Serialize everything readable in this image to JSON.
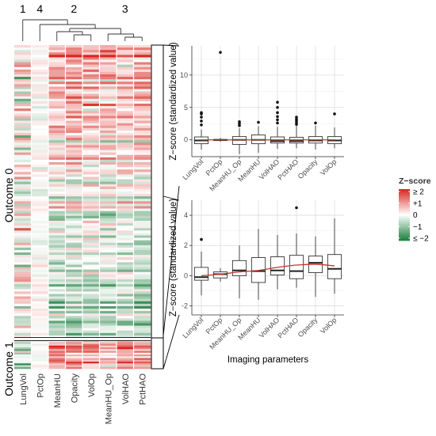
{
  "chart_data": [
    {
      "type": "heatmap",
      "row_groups": [
        {
          "label": "Outcome 0",
          "row_count": 120
        },
        {
          "label": "Outcome 1",
          "row_count": 16
        }
      ],
      "columns": [
        "LungVol",
        "PctOp",
        "MeanHU",
        "Opacity",
        "VolOp",
        "MeanHU_Op",
        "VolHAO",
        "PctHAO"
      ],
      "column_clusters": [
        "1",
        "4",
        "2",
        "3"
      ],
      "column_cluster_sizes": [
        1,
        1,
        3,
        3
      ],
      "color_scale": {
        "low": "#1a7d3c",
        "mid": "#ffffff",
        "high": "#d7261e",
        "domain": [
          -2,
          2
        ]
      },
      "legend": {
        "title": "Z−score",
        "labels": [
          "≥ 2",
          "+1",
          "0",
          "−1",
          "≤ −2"
        ]
      },
      "column_means_outcome0": [
        0.0,
        0.0,
        0.5,
        0.55,
        0.45,
        0.45,
        0.35,
        0.55
      ],
      "column_means_outcome1": [
        -0.3,
        0.0,
        0.9,
        0.95,
        0.85,
        0.35,
        0.95,
        0.85
      ]
    },
    {
      "type": "boxplot",
      "panel": "Outcome 0",
      "ylabel": "Z−score (standardized value)",
      "ylim": [
        -2.6,
        14.5
      ],
      "yticks": [
        0,
        5,
        10
      ],
      "categories": [
        "LungVol",
        "PctOp",
        "MeanHU_Op",
        "MeanHU",
        "VolHAO",
        "PctHAO",
        "Opacity",
        "VolOp"
      ],
      "boxes": [
        {
          "min": -1.5,
          "q1": -0.6,
          "median": -0.1,
          "q3": 0.45,
          "max": 1.6,
          "outliers": [
            2.3,
            2.9,
            3.5,
            4.0,
            4.2
          ]
        },
        {
          "min": -0.3,
          "q1": -0.1,
          "median": 0.0,
          "q3": 0.05,
          "max": 0.3,
          "outliers": [
            13.5
          ]
        },
        {
          "min": -2.2,
          "q1": -0.7,
          "median": 0.0,
          "q3": 0.5,
          "max": 1.8,
          "outliers": [
            2.2,
            2.5,
            2.8
          ]
        },
        {
          "min": -2.0,
          "q1": -0.6,
          "median": 0.0,
          "q3": 0.75,
          "max": 2.1,
          "outliers": [
            2.7
          ]
        },
        {
          "min": -1.4,
          "q1": -0.5,
          "median": -0.2,
          "q3": 0.45,
          "max": 2.0,
          "outliers": [
            2.6,
            3.1,
            3.6,
            4.2,
            5.0,
            5.8
          ]
        },
        {
          "min": -1.3,
          "q1": -0.5,
          "median": -0.2,
          "q3": 0.4,
          "max": 2.2,
          "outliers": [
            2.4,
            2.7,
            3.0,
            3.2,
            3.5
          ]
        },
        {
          "min": -1.5,
          "q1": -0.5,
          "median": -0.1,
          "q3": 0.5,
          "max": 2.2,
          "outliers": [
            2.6
          ]
        },
        {
          "min": -1.3,
          "q1": -0.6,
          "median": -0.1,
          "q3": 0.5,
          "max": 1.9,
          "outliers": [
            4.0
          ]
        }
      ],
      "trend_values": [
        0.0,
        0.0,
        0.0,
        0.0,
        0.0,
        0.0,
        0.0,
        0.0
      ]
    },
    {
      "type": "boxplot",
      "panel": "Outcome 1",
      "ylabel": "Z−score (standardized value)",
      "xlabel": "Imaging parameters",
      "ylim": [
        -2.6,
        5.0
      ],
      "yticks": [
        -2,
        0,
        2,
        4
      ],
      "categories": [
        "LungVol",
        "PctOp",
        "MeanHU_Op",
        "MeanHU",
        "VolHAO",
        "PctHAO",
        "Opacity",
        "VolOp"
      ],
      "boxes": [
        {
          "min": -1.3,
          "q1": -0.3,
          "median": -0.1,
          "q3": 0.55,
          "max": 1.6,
          "outliers": [
            2.4
          ]
        },
        {
          "min": -0.4,
          "q1": -0.15,
          "median": 0.1,
          "q3": 0.25,
          "max": 0.5,
          "outliers": []
        },
        {
          "min": -1.5,
          "q1": 0.0,
          "median": 0.35,
          "q3": 1.0,
          "max": 2.0,
          "outliers": []
        },
        {
          "min": -1.6,
          "q1": -0.45,
          "median": 0.3,
          "q3": 1.2,
          "max": 3.1,
          "outliers": []
        },
        {
          "min": -0.9,
          "q1": 0.05,
          "median": 0.35,
          "q3": 1.25,
          "max": 2.7,
          "outliers": []
        },
        {
          "min": -0.8,
          "q1": -0.2,
          "median": 0.3,
          "q3": 1.35,
          "max": 2.8,
          "outliers": [
            4.5
          ]
        },
        {
          "min": -1.4,
          "q1": 0.2,
          "median": 0.85,
          "q3": 1.3,
          "max": 2.6,
          "outliers": []
        },
        {
          "min": -1.2,
          "q1": -0.2,
          "median": 0.45,
          "q3": 1.4,
          "max": 3.8,
          "outliers": []
        }
      ],
      "trend_values": [
        0.0,
        0.1,
        0.25,
        0.35,
        0.55,
        0.7,
        0.75,
        0.65
      ]
    }
  ]
}
